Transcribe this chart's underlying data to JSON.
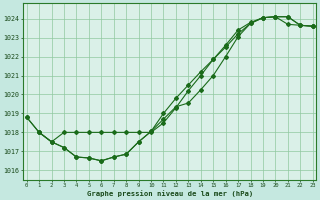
{
  "title": "Graphe pression niveau de la mer (hPa)",
  "background_color": "#c5e8e0",
  "plot_bg_color": "#daf0e8",
  "line_color": "#1a6b1a",
  "grid_color": "#90c8a0",
  "x_ticks": [
    0,
    1,
    2,
    3,
    4,
    5,
    6,
    7,
    8,
    9,
    10,
    11,
    12,
    13,
    14,
    15,
    16,
    17,
    18,
    19,
    20,
    21,
    22,
    23
  ],
  "ylim": [
    1015.5,
    1024.8
  ],
  "yticks": [
    1016,
    1017,
    1018,
    1019,
    1020,
    1021,
    1022,
    1023,
    1024
  ],
  "series1_x": [
    0,
    1,
    2,
    3,
    4,
    5,
    6,
    7,
    8,
    9,
    10,
    11,
    12,
    13,
    14,
    15,
    16,
    17,
    18,
    19,
    20,
    21,
    22,
    23
  ],
  "series1_y": [
    1018.8,
    1018.0,
    1017.5,
    1017.2,
    1016.7,
    1016.65,
    1016.5,
    1016.7,
    1016.85,
    1017.5,
    1018.05,
    1018.7,
    1019.35,
    1019.55,
    1020.25,
    1021.0,
    1022.0,
    1023.05,
    1023.75,
    1024.05,
    1024.1,
    1024.1,
    1023.65,
    1023.6
  ],
  "series2_x": [
    0,
    1,
    2,
    3,
    4,
    5,
    6,
    7,
    8,
    9,
    10,
    11,
    12,
    13,
    14,
    15,
    16,
    17,
    18,
    19,
    20,
    21,
    22,
    23
  ],
  "series2_y": [
    1018.8,
    1018.0,
    1017.5,
    1017.2,
    1016.7,
    1016.65,
    1016.5,
    1016.7,
    1016.85,
    1017.5,
    1018.05,
    1019.0,
    1019.8,
    1020.5,
    1021.2,
    1021.85,
    1022.5,
    1023.2,
    1023.75,
    1024.05,
    1024.1,
    1024.1,
    1023.65,
    1023.6
  ],
  "series3_x": [
    1,
    2,
    3,
    4,
    5,
    6,
    7,
    8,
    9,
    10,
    11,
    12,
    13,
    14,
    15,
    16,
    17,
    18,
    19,
    20,
    21,
    22,
    23
  ],
  "series3_y": [
    1018.0,
    1017.5,
    1018.0,
    1018.0,
    1018.0,
    1018.0,
    1018.0,
    1018.0,
    1018.0,
    1018.0,
    1018.5,
    1019.3,
    1020.2,
    1021.0,
    1021.85,
    1022.6,
    1023.4,
    1023.8,
    1024.05,
    1024.1,
    1023.7,
    1023.65,
    1023.6
  ]
}
